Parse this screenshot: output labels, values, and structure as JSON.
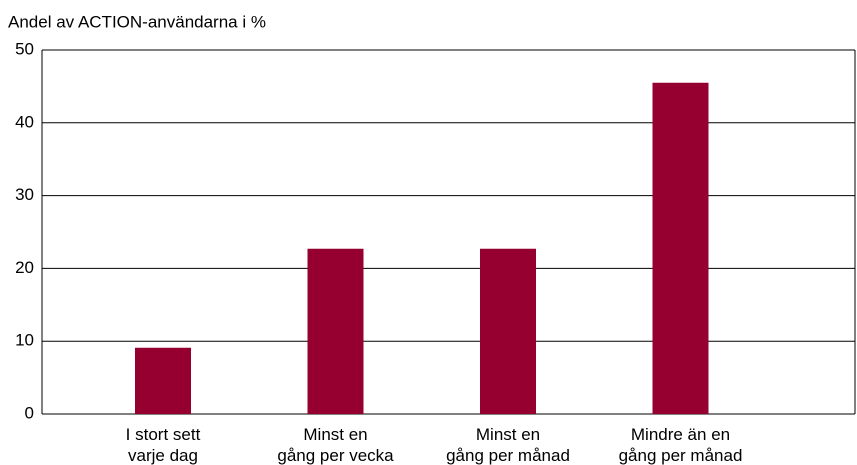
{
  "chart_data": {
    "type": "bar",
    "y_label": "Andel av ACTION-användarna i %",
    "categories": [
      "I stort sett\nvarje dag",
      "Minst en\ngång per vecka",
      "Minst en\ngång per månad",
      "Mindre än en\ngång per månad"
    ],
    "values": [
      9.1,
      22.7,
      22.7,
      45.5
    ],
    "color": "#960030",
    "ylim": [
      0,
      50
    ],
    "yticks": [
      0,
      10,
      20,
      30,
      40,
      50
    ],
    "grid": true
  }
}
